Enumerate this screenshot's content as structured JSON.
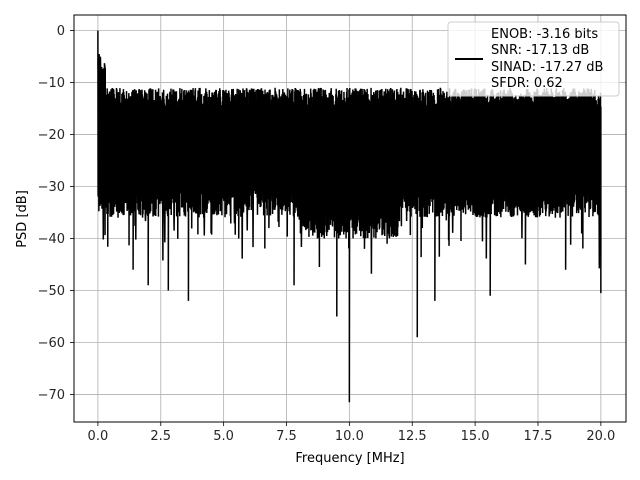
{
  "chart_data": {
    "type": "line",
    "xlabel": "Frequency [MHz]",
    "ylabel": "PSD [dB]",
    "xlim": [
      -0.95,
      21.0
    ],
    "ylim": [
      -75.3,
      3.0
    ],
    "xticks": [
      0.0,
      2.5,
      5.0,
      7.5,
      10.0,
      12.5,
      15.0,
      17.5,
      20.0
    ],
    "xtick_labels": [
      "0.0",
      "2.5",
      "5.0",
      "7.5",
      "10.0",
      "12.5",
      "15.0",
      "17.5",
      "20.0"
    ],
    "yticks": [
      0,
      -10,
      -20,
      -30,
      -40,
      -50,
      -60,
      -70
    ],
    "ytick_labels": [
      "0",
      "−10",
      "−20",
      "−30",
      "−40",
      "−50",
      "−60",
      "−70"
    ],
    "grid": true,
    "legend_position": "top-right",
    "series": [
      {
        "color": "#000000",
        "legend_lines": [
          "ENOB: -3.16 bits",
          "SNR: -17.13 dB",
          "SINAD: -17.27 dB",
          "SFDR: 0.62"
        ],
        "noise_band": {
          "x_start": 0.0,
          "x_end": 20.0,
          "upper_envelope_db": -13,
          "lower_envelope_db": -33,
          "mean_db": -24
        },
        "x": [
          0.0,
          0.02,
          0.05,
          0.08,
          0.1,
          0.15,
          0.2,
          0.25,
          0.3,
          0.4,
          0.5,
          0.8,
          1.4,
          2.0,
          2.8,
          3.6,
          4.5,
          5.6,
          6.8,
          7.8,
          9.0,
          9.5,
          10.0,
          10.6,
          11.5,
          12.7,
          13.4,
          15.6,
          17.0,
          18.6,
          20.0
        ],
        "y": [
          0.0,
          -8.0,
          -4.5,
          -10.0,
          -5.0,
          -7.0,
          -15.0,
          -13.0,
          -18.0,
          -17.0,
          -22.0,
          -36.0,
          -46.0,
          -49.0,
          -50.0,
          -52.0,
          -39.0,
          -40.0,
          -38.0,
          -49.0,
          -40.0,
          -55.0,
          -71.5,
          -42.0,
          -41.0,
          -59.0,
          -52.0,
          -51.0,
          -45.0,
          -46.0,
          -50.5
        ]
      }
    ]
  }
}
